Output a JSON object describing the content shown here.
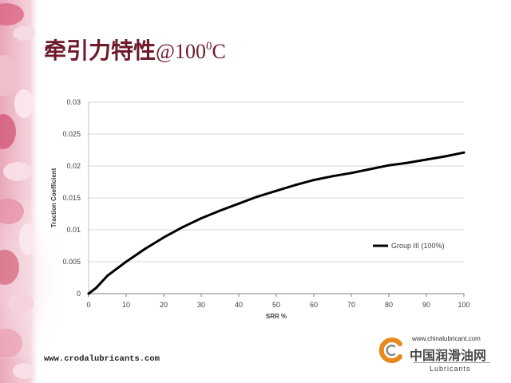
{
  "slide": {
    "title": {
      "cn": "牵引力特性",
      "suffix": "@100",
      "sup": "0",
      "unit": "C"
    },
    "footer_url": "www.crodalubricants.com",
    "logo": {
      "url": "www.chinalubricant.com",
      "name": "中国润滑油网",
      "tagline": "Lubricants",
      "icon": "orange-ring-logo-icon"
    },
    "colors": {
      "title": "#6e1a2b",
      "logo_accent": "#e8891c",
      "decoration": "#e59bb0",
      "series_line": "#000000",
      "grid": "#d9d9d9"
    }
  },
  "chart_data": {
    "type": "line",
    "title": "",
    "xlabel": "SRR %",
    "ylabel": "Traction Coefficient",
    "xlim": [
      0,
      100
    ],
    "ylim": [
      0,
      0.03
    ],
    "x_ticks": [
      0,
      10,
      20,
      30,
      40,
      50,
      60,
      70,
      80,
      90,
      100
    ],
    "y_ticks": [
      0,
      0.005,
      0.01,
      0.015,
      0.02,
      0.025,
      0.03
    ],
    "grid": true,
    "legend": "right",
    "series": [
      {
        "name": "Group III (100%)",
        "x": [
          0,
          2,
          5,
          10,
          15,
          20,
          25,
          30,
          35,
          40,
          45,
          50,
          55,
          60,
          65,
          70,
          75,
          80,
          85,
          90,
          95,
          100
        ],
        "y": [
          0,
          0.0009,
          0.0028,
          0.005,
          0.007,
          0.0088,
          0.0104,
          0.0118,
          0.013,
          0.0141,
          0.0152,
          0.0161,
          0.017,
          0.0178,
          0.0184,
          0.0189,
          0.0195,
          0.0201,
          0.0205,
          0.021,
          0.0215,
          0.0221
        ]
      }
    ]
  }
}
